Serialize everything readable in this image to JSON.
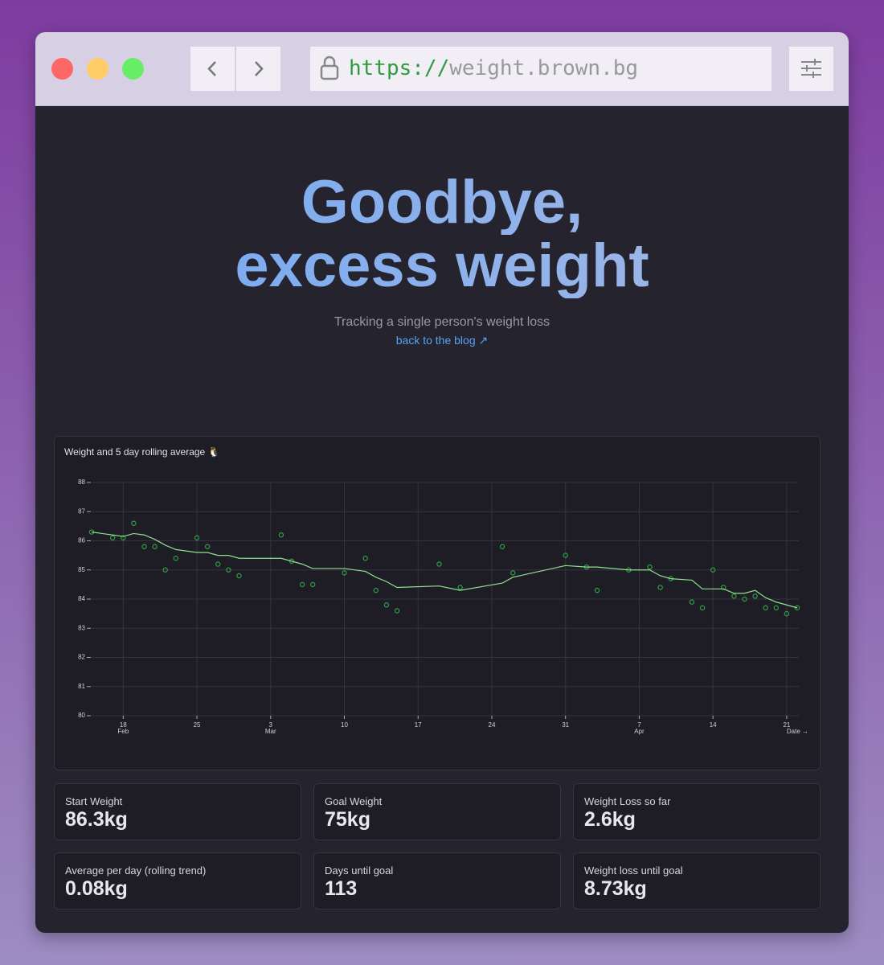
{
  "url": {
    "scheme": "https://",
    "host": "weight.brown.bg"
  },
  "header": {
    "title_lines": [
      "Goodbye,",
      "excess weight"
    ],
    "subtitle": "Tracking a single person's weight loss",
    "link": "back to the blog ↗"
  },
  "chart_data": {
    "type": "scatter",
    "title": "Weight and 5 day rolling average 🐧",
    "x_label": "Date →",
    "x": [
      "Feb 15",
      "Feb 17",
      "Feb 18",
      "Feb 19",
      "Feb 20",
      "Feb 21",
      "Feb 22",
      "Feb 23",
      "Feb 25",
      "Feb 26",
      "Feb 27",
      "Feb 28",
      "Feb 29",
      "Mar 4",
      "Mar 5",
      "Mar 6",
      "Mar 7",
      "Mar 10",
      "Mar 12",
      "Mar 13",
      "Mar 14",
      "Mar 15",
      "Mar 19",
      "Mar 21",
      "Mar 25",
      "Mar 26",
      "Mar 31",
      "Apr 2",
      "Apr 3",
      "Apr 6",
      "Apr 8",
      "Apr 9",
      "Apr 10",
      "Apr 12",
      "Apr 13",
      "Apr 14",
      "Apr 15",
      "Apr 16",
      "Apr 17",
      "Apr 18",
      "Apr 19",
      "Apr 20",
      "Apr 21",
      "Apr 22"
    ],
    "series": [
      {
        "type": "scatter",
        "color": "#2ea043",
        "values": [
          86.3,
          86.1,
          86.1,
          86.6,
          85.8,
          85.8,
          85.0,
          85.4,
          86.1,
          85.8,
          85.2,
          85.0,
          84.8,
          86.2,
          85.3,
          84.5,
          84.5,
          84.9,
          85.4,
          84.3,
          83.8,
          83.6,
          85.2,
          84.4,
          85.8,
          84.9,
          85.5,
          85.1,
          84.3,
          85.0,
          85.1,
          84.4,
          84.7,
          83.9,
          83.7,
          85.0,
          84.4,
          84.1,
          84.0,
          84.1,
          83.7,
          83.7,
          83.5,
          83.7
        ]
      },
      {
        "type": "line",
        "color": "#8fe08f",
        "values": [
          86.3,
          86.2,
          86.15,
          86.25,
          86.2,
          86.05,
          85.85,
          85.7,
          85.6,
          85.6,
          85.5,
          85.5,
          85.4,
          85.4,
          85.3,
          85.2,
          85.05,
          85.05,
          84.95,
          84.75,
          84.6,
          84.4,
          84.45,
          84.3,
          84.55,
          84.75,
          85.15,
          85.1,
          85.1,
          85.0,
          85.0,
          84.8,
          84.7,
          84.65,
          84.35,
          84.35,
          84.35,
          84.2,
          84.2,
          84.3,
          84.05,
          83.9,
          83.8,
          83.7
        ]
      }
    ],
    "xlim": [
      "Feb 15",
      "Apr 22"
    ],
    "xticks": [
      {
        "value": "Feb 18",
        "label": [
          "18",
          "Feb"
        ]
      },
      {
        "value": "Feb 25",
        "label": "25"
      },
      {
        "value": "Mar 3",
        "label": [
          "3",
          "Mar"
        ]
      },
      {
        "value": "Mar 10",
        "label": "10"
      },
      {
        "value": "Mar 17",
        "label": "17"
      },
      {
        "value": "Mar 24",
        "label": "24"
      },
      {
        "value": "Mar 31",
        "label": "31"
      },
      {
        "value": "Apr 7",
        "label": [
          "7",
          "Apr"
        ]
      },
      {
        "value": "Apr 14",
        "label": "14"
      },
      {
        "value": "Apr 21",
        "label": "21"
      }
    ],
    "ylim": [
      80,
      88
    ],
    "yticks": [
      80,
      81,
      82,
      83,
      84,
      85,
      86,
      87,
      88
    ],
    "grid": true
  },
  "stats": [
    {
      "label": "Start Weight",
      "value": "86.3kg"
    },
    {
      "label": "Goal Weight",
      "value": "75kg"
    },
    {
      "label": "Weight Loss so far",
      "value": "2.6kg"
    },
    {
      "label": "Average per day (rolling trend)",
      "value": "0.08kg"
    },
    {
      "label": "Days until goal",
      "value": "113"
    },
    {
      "label": "Weight loss until goal",
      "value": "8.73kg"
    }
  ]
}
